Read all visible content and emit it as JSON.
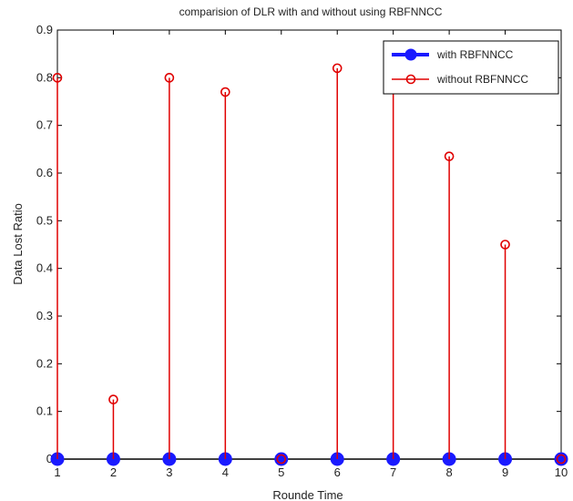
{
  "chart_data": {
    "type": "stem",
    "title": "comparision of DLR with and without using RBFNNCC",
    "xlabel": "Rounde Time",
    "ylabel": "Data Lost Ratio",
    "xlim": [
      1,
      10
    ],
    "ylim": [
      0,
      0.9
    ],
    "xticks": [
      1,
      2,
      3,
      4,
      5,
      6,
      7,
      8,
      9,
      10
    ],
    "yticks": [
      0,
      0.1,
      0.2,
      0.3,
      0.4,
      0.5,
      0.6,
      0.7,
      0.8,
      0.9
    ],
    "x": [
      1,
      2,
      3,
      4,
      5,
      6,
      7,
      8,
      9,
      10
    ],
    "legend_position": "top-right",
    "grid": false,
    "series": [
      {
        "name": "with RBFNNCC",
        "color": "#1a1aff",
        "marker": "filled-circle",
        "values": [
          0,
          0,
          0,
          0,
          0,
          0,
          0,
          0,
          0,
          0
        ]
      },
      {
        "name": "without RBFNNCC",
        "color": "#e00000",
        "marker": "open-circle",
        "values": [
          0.8,
          0.125,
          0.8,
          0.77,
          0,
          0.82,
          0.8,
          0.635,
          0.45,
          0
        ]
      }
    ]
  }
}
